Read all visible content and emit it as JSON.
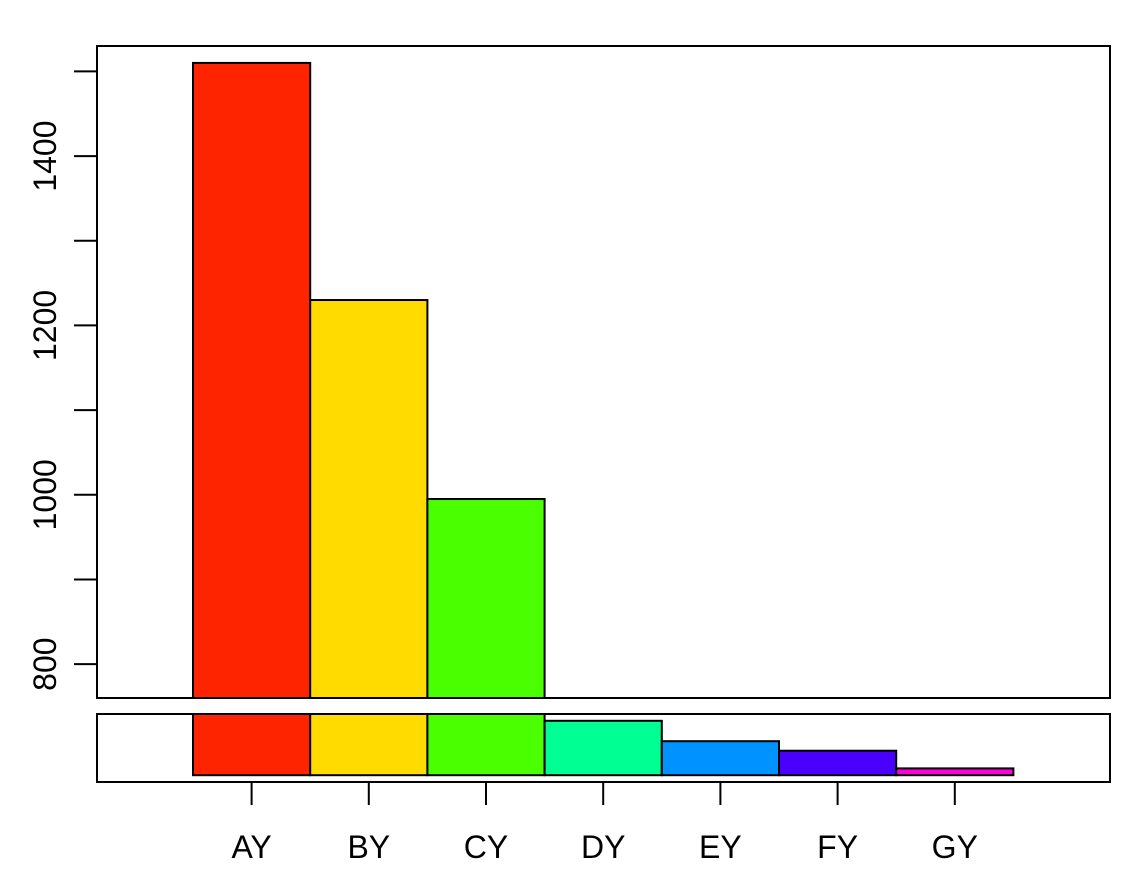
{
  "chart_data": {
    "type": "bar",
    "title": "",
    "xlabel": "",
    "ylabel": "",
    "categories": [
      "AY",
      "BY",
      "CY",
      "DY",
      "EY",
      "FY",
      "GY"
    ],
    "values": [
      1510,
      1230,
      995,
      740,
      725,
      718,
      705
    ],
    "colors": [
      "#FF2400",
      "#FFDB00",
      "#49FF00",
      "#00FF92",
      "#0092FF",
      "#4900FF",
      "#FF00DB"
    ],
    "broken_axis": true,
    "upper_panel": {
      "ylim": [
        760,
        1530
      ],
      "yticks": [
        800,
        900,
        1000,
        1100,
        1200,
        1300,
        1400,
        1500
      ],
      "ytick_labels": [
        "800",
        "",
        "1000",
        "",
        "1200",
        "",
        "1400",
        ""
      ]
    },
    "lower_panel": {
      "ylim": [
        695,
        745
      ],
      "yticks": [],
      "ytick_labels": []
    },
    "grid": false,
    "legend": "none"
  }
}
